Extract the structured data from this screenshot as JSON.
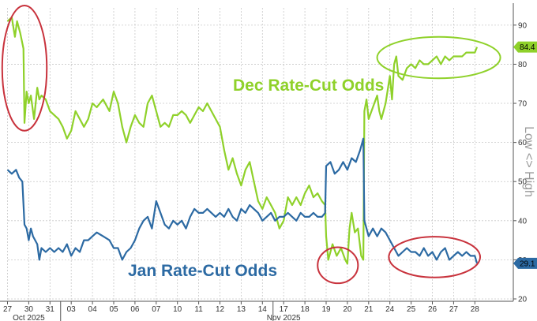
{
  "chart_data": {
    "type": "line",
    "ylabel": "Low <> High",
    "ylim": [
      20,
      94
    ],
    "y_ticks": [
      20,
      30,
      40,
      50,
      60,
      70,
      80,
      90
    ],
    "x_ticks": [
      "27",
      "30",
      "31",
      "03",
      "04",
      "05",
      "06",
      "07",
      "10",
      "11",
      "12",
      "13",
      "14",
      "17",
      "18",
      "19",
      "20",
      "21",
      "24",
      "25",
      "26",
      "27",
      "28"
    ],
    "x_sublabels": [
      {
        "text": "Oct 2025",
        "at": 1
      },
      {
        "text": "Nov 2025",
        "at": 13
      }
    ],
    "annotations": [
      "Dec Rate-Cut Odds",
      "Jan Rate-Cut Odds"
    ],
    "series": [
      {
        "name": "Dec Rate-Cut Odds",
        "color": "#8fd12a",
        "last_label": "84.4",
        "points": [
          [
            0,
            91
          ],
          [
            0.2,
            92
          ],
          [
            0.35,
            87
          ],
          [
            0.45,
            91
          ],
          [
            0.6,
            88
          ],
          [
            0.75,
            84
          ],
          [
            0.8,
            65
          ],
          [
            0.9,
            73
          ],
          [
            1.0,
            70
          ],
          [
            1.1,
            72
          ],
          [
            1.25,
            66
          ],
          [
            1.4,
            74
          ],
          [
            1.5,
            71
          ],
          [
            1.6,
            72
          ],
          [
            1.8,
            71
          ],
          [
            2.0,
            68
          ],
          [
            2.2,
            67
          ],
          [
            2.4,
            66
          ],
          [
            2.6,
            64
          ],
          [
            2.8,
            61
          ],
          [
            3.0,
            63
          ],
          [
            3.2,
            68
          ],
          [
            3.4,
            66
          ],
          [
            3.6,
            64
          ],
          [
            3.8,
            66
          ],
          [
            4.0,
            70
          ],
          [
            4.2,
            69
          ],
          [
            4.5,
            71
          ],
          [
            4.8,
            68
          ],
          [
            5.0,
            73
          ],
          [
            5.2,
            70
          ],
          [
            5.4,
            64
          ],
          [
            5.6,
            60
          ],
          [
            5.8,
            64
          ],
          [
            6.0,
            67
          ],
          [
            6.2,
            65
          ],
          [
            6.4,
            64
          ],
          [
            6.6,
            70
          ],
          [
            6.8,
            72
          ],
          [
            7.0,
            68
          ],
          [
            7.2,
            64
          ],
          [
            7.4,
            65
          ],
          [
            7.6,
            64
          ],
          [
            7.8,
            67
          ],
          [
            8.0,
            67
          ],
          [
            8.2,
            68
          ],
          [
            8.4,
            67
          ],
          [
            8.6,
            65
          ],
          [
            8.8,
            67
          ],
          [
            9.0,
            69
          ],
          [
            9.2,
            68
          ],
          [
            9.4,
            70
          ],
          [
            9.6,
            68
          ],
          [
            9.8,
            66
          ],
          [
            10.0,
            64
          ],
          [
            10.2,
            58
          ],
          [
            10.4,
            53
          ],
          [
            10.6,
            56
          ],
          [
            10.8,
            52
          ],
          [
            11.0,
            49
          ],
          [
            11.2,
            53
          ],
          [
            11.4,
            55
          ],
          [
            11.6,
            50
          ],
          [
            11.8,
            45
          ],
          [
            12.0,
            43
          ],
          [
            12.2,
            46
          ],
          [
            12.4,
            44
          ],
          [
            12.6,
            42
          ],
          [
            12.8,
            38
          ],
          [
            13.0,
            40
          ],
          [
            13.2,
            46
          ],
          [
            13.4,
            44
          ],
          [
            13.6,
            46
          ],
          [
            13.8,
            44
          ],
          [
            14.0,
            47
          ],
          [
            14.2,
            49
          ],
          [
            14.4,
            46
          ],
          [
            14.6,
            47
          ],
          [
            14.8,
            45
          ],
          [
            14.95,
            44
          ],
          [
            15.0,
            36
          ],
          [
            15.1,
            30
          ],
          [
            15.3,
            34
          ],
          [
            15.5,
            31
          ],
          [
            15.7,
            33
          ],
          [
            15.9,
            30
          ],
          [
            16.0,
            29
          ],
          [
            16.1,
            38
          ],
          [
            16.2,
            42
          ],
          [
            16.35,
            37
          ],
          [
            16.5,
            38
          ],
          [
            16.65,
            31
          ],
          [
            16.75,
            30
          ],
          [
            16.8,
            68
          ],
          [
            16.9,
            71
          ],
          [
            17.0,
            66
          ],
          [
            17.2,
            69
          ],
          [
            17.4,
            72
          ],
          [
            17.5,
            68
          ],
          [
            17.6,
            66
          ],
          [
            17.8,
            70
          ],
          [
            18.0,
            77
          ],
          [
            18.1,
            71
          ],
          [
            18.2,
            80
          ],
          [
            18.3,
            82
          ],
          [
            18.4,
            77
          ],
          [
            18.6,
            76
          ],
          [
            18.8,
            79
          ],
          [
            19.0,
            80
          ],
          [
            19.2,
            79
          ],
          [
            19.4,
            81
          ],
          [
            19.6,
            80
          ],
          [
            19.8,
            80
          ],
          [
            20.0,
            81
          ],
          [
            20.2,
            82
          ],
          [
            20.4,
            80
          ],
          [
            20.6,
            82
          ],
          [
            20.8,
            81
          ],
          [
            21.0,
            82
          ],
          [
            21.2,
            82
          ],
          [
            21.4,
            82
          ],
          [
            21.6,
            83
          ],
          [
            22.0,
            83
          ],
          [
            22.1,
            84.4
          ]
        ]
      },
      {
        "name": "Jan Rate-Cut Odds",
        "color": "#2c6aa3",
        "last_label": "29.1",
        "points": [
          [
            0,
            53
          ],
          [
            0.2,
            52
          ],
          [
            0.4,
            53
          ],
          [
            0.55,
            51
          ],
          [
            0.7,
            50
          ],
          [
            0.8,
            39
          ],
          [
            0.9,
            38
          ],
          [
            1.0,
            35
          ],
          [
            1.1,
            38
          ],
          [
            1.2,
            36
          ],
          [
            1.3,
            35
          ],
          [
            1.4,
            34
          ],
          [
            1.5,
            30
          ],
          [
            1.6,
            33
          ],
          [
            1.8,
            32
          ],
          [
            2.0,
            33
          ],
          [
            2.2,
            32
          ],
          [
            2.4,
            33
          ],
          [
            2.6,
            32
          ],
          [
            2.8,
            34
          ],
          [
            3.0,
            31
          ],
          [
            3.2,
            33
          ],
          [
            3.4,
            32
          ],
          [
            3.6,
            35
          ],
          [
            3.8,
            35
          ],
          [
            4.0,
            36
          ],
          [
            4.2,
            37
          ],
          [
            4.5,
            36
          ],
          [
            4.8,
            35
          ],
          [
            5.0,
            33
          ],
          [
            5.2,
            33
          ],
          [
            5.4,
            30
          ],
          [
            5.6,
            32
          ],
          [
            5.8,
            33
          ],
          [
            6.0,
            35
          ],
          [
            6.2,
            38
          ],
          [
            6.4,
            40
          ],
          [
            6.6,
            41
          ],
          [
            6.8,
            38
          ],
          [
            7.0,
            45
          ],
          [
            7.2,
            42
          ],
          [
            7.4,
            39
          ],
          [
            7.6,
            38
          ],
          [
            7.8,
            40
          ],
          [
            8.0,
            39
          ],
          [
            8.2,
            40
          ],
          [
            8.4,
            38
          ],
          [
            8.6,
            41
          ],
          [
            8.8,
            43
          ],
          [
            9.0,
            42
          ],
          [
            9.2,
            42
          ],
          [
            9.4,
            43
          ],
          [
            9.6,
            42
          ],
          [
            9.8,
            41
          ],
          [
            10.0,
            42
          ],
          [
            10.2,
            41
          ],
          [
            10.4,
            43
          ],
          [
            10.6,
            41
          ],
          [
            10.8,
            40
          ],
          [
            11.0,
            43
          ],
          [
            11.2,
            42
          ],
          [
            11.4,
            44
          ],
          [
            11.6,
            43
          ],
          [
            11.8,
            42
          ],
          [
            12.0,
            40
          ],
          [
            12.2,
            41
          ],
          [
            12.4,
            42
          ],
          [
            12.6,
            40
          ],
          [
            12.8,
            41
          ],
          [
            13.0,
            41
          ],
          [
            13.2,
            42
          ],
          [
            13.4,
            41
          ],
          [
            13.6,
            40
          ],
          [
            13.8,
            42
          ],
          [
            14.0,
            41
          ],
          [
            14.2,
            41
          ],
          [
            14.4,
            42
          ],
          [
            14.6,
            41
          ],
          [
            14.8,
            41
          ],
          [
            14.95,
            42
          ],
          [
            15.0,
            54
          ],
          [
            15.2,
            55
          ],
          [
            15.4,
            52
          ],
          [
            15.6,
            53
          ],
          [
            15.8,
            55
          ],
          [
            16.0,
            53
          ],
          [
            16.2,
            56
          ],
          [
            16.4,
            55
          ],
          [
            16.6,
            58
          ],
          [
            16.75,
            61
          ],
          [
            16.8,
            40
          ],
          [
            17.0,
            36
          ],
          [
            17.2,
            38
          ],
          [
            17.4,
            36
          ],
          [
            17.6,
            38
          ],
          [
            17.8,
            37
          ],
          [
            18.0,
            35
          ],
          [
            18.2,
            33
          ],
          [
            18.4,
            31
          ],
          [
            18.6,
            32
          ],
          [
            18.8,
            33
          ],
          [
            19.0,
            32
          ],
          [
            19.2,
            32
          ],
          [
            19.4,
            31
          ],
          [
            19.6,
            33
          ],
          [
            19.8,
            31
          ],
          [
            20.0,
            32
          ],
          [
            20.2,
            30
          ],
          [
            20.4,
            32
          ],
          [
            20.6,
            33
          ],
          [
            20.8,
            30
          ],
          [
            21.0,
            31
          ],
          [
            21.2,
            32
          ],
          [
            21.4,
            31
          ],
          [
            21.6,
            32
          ],
          [
            21.8,
            31
          ],
          [
            22.0,
            31
          ],
          [
            22.1,
            29.1
          ]
        ]
      }
    ],
    "highlights": [
      {
        "series": 0,
        "cx": 0.8,
        "cy": 79,
        "rx": 1.05,
        "ry": 16,
        "color": "#c8323c"
      },
      {
        "series": 1,
        "cx": 15.55,
        "cy": 28.6,
        "rx": 0.95,
        "ry": 4.6,
        "color": "#c8323c"
      },
      {
        "series": 1,
        "cx": 20.1,
        "cy": 30.7,
        "rx": 2.15,
        "ry": 5.2,
        "color": "#c8323c"
      },
      {
        "series": 0,
        "cx": 20.3,
        "cy": 81.7,
        "rx": 2.9,
        "ry": 5.3,
        "color": "#8fd12a"
      }
    ]
  }
}
